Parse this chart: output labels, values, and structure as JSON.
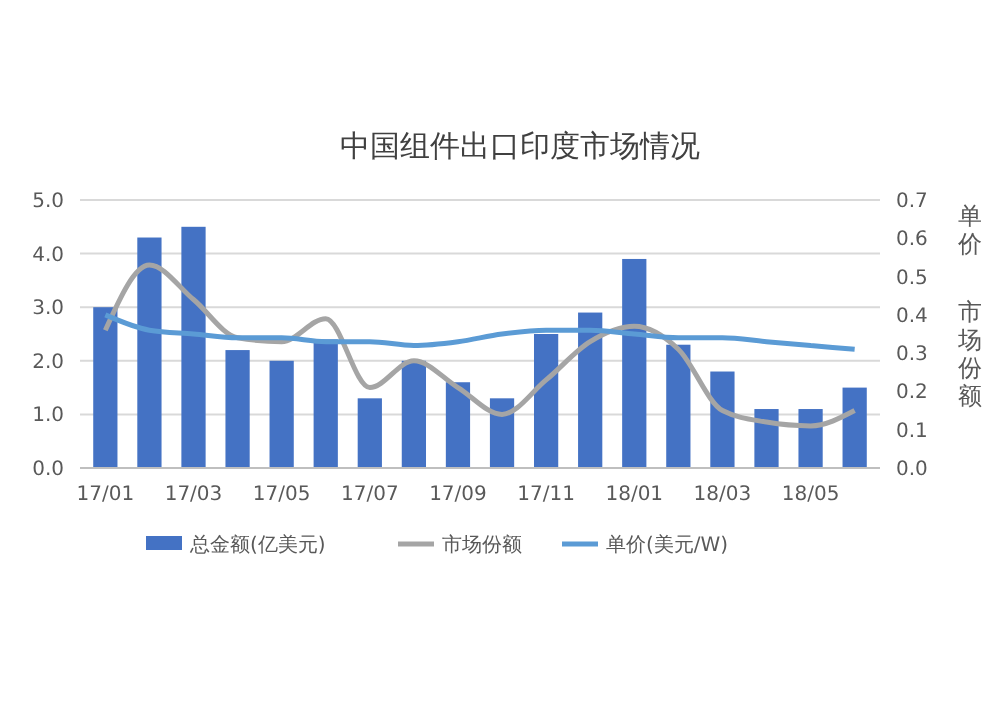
{
  "chart_data": {
    "type": "bar",
    "title": "中国组件出口印度市场情况",
    "y2label": "单价",
    "annotations": [
      "市场份额"
    ],
    "categories": [
      "17/01",
      null,
      "17/03",
      null,
      "17/05",
      null,
      "17/07",
      null,
      "17/09",
      null,
      "17/11",
      null,
      "18/01",
      null,
      "18/03",
      null,
      "18/05",
      null
    ],
    "series": [
      {
        "name": "总金额(亿美元)",
        "color": "#4472c4",
        "values": [
          3.0,
          4.3,
          4.5,
          2.2,
          2.0,
          2.4,
          1.3,
          2.0,
          1.6,
          1.3,
          2.5,
          2.9,
          3.9,
          2.3,
          1.8,
          1.1,
          1.1,
          1.5
        ]
      },
      {
        "name": "市场份额",
        "type": "line",
        "axis": "y2",
        "color": "#a5a5a5",
        "values": [
          0.36,
          0.53,
          0.44,
          0.34,
          0.33,
          0.39,
          0.21,
          0.28,
          0.21,
          0.14,
          0.23,
          0.33,
          0.37,
          0.31,
          0.15,
          0.12,
          0.11,
          0.15
        ]
      },
      {
        "name": "单价(美元/W)",
        "type": "line",
        "axis": "y2",
        "color": "#5b9bd5",
        "values": [
          0.4,
          0.36,
          0.35,
          0.34,
          0.34,
          0.33,
          0.33,
          0.32,
          0.33,
          0.35,
          0.36,
          0.36,
          0.35,
          0.34,
          0.34,
          0.33,
          0.32,
          0.31
        ]
      }
    ],
    "ylim": [
      0,
      5
    ],
    "yticks": [
      {
        "value": 0,
        "label": "0.0"
      },
      {
        "value": 1,
        "label": "1.0"
      },
      {
        "value": 2,
        "label": "2.0"
      },
      {
        "value": 3,
        "label": "3.0"
      },
      {
        "value": 4,
        "label": "4.0"
      },
      {
        "value": 5,
        "label": "5.0"
      }
    ],
    "y2lim": [
      0,
      0.7
    ],
    "y2ticks": [
      {
        "value": 0,
        "label": "0.0"
      },
      {
        "value": 0.1,
        "label": "0.1"
      },
      {
        "value": 0.2,
        "label": "0.2"
      },
      {
        "value": 0.3,
        "label": "0.3"
      },
      {
        "value": 0.4,
        "label": "0.4"
      },
      {
        "value": 0.5,
        "label": "0.5"
      },
      {
        "value": 0.6,
        "label": "0.6"
      },
      {
        "value": 0.7,
        "label": "0.7"
      }
    ],
    "grid": "y",
    "legend": "bottom",
    "marker": "none",
    "line_style": "solid"
  }
}
